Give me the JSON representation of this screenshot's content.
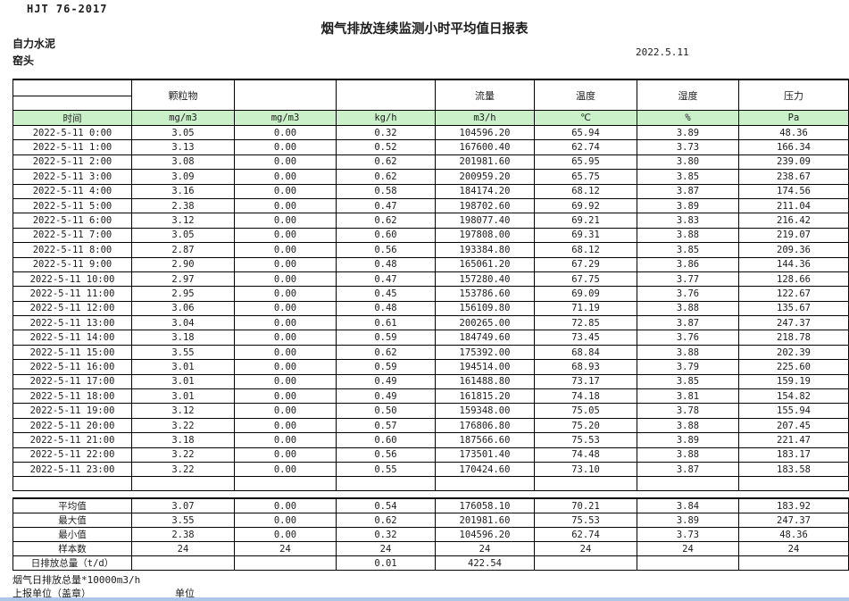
{
  "page": {
    "doc_code": "HJT  76-2017",
    "title": "烟气排放连续监测小时平均值日报表",
    "company": "自力水泥",
    "location": "窑头",
    "date": "2022.5.11"
  },
  "table": {
    "group_headers": [
      "",
      "颗粒物",
      "",
      "",
      "流量",
      "温度",
      "湿度",
      "压力"
    ],
    "unit_row": [
      "时间",
      "mg/m3",
      "mg/m3",
      "kg/h",
      "m3/h",
      "℃",
      "%",
      "Pa"
    ],
    "rows": [
      [
        "2022-5-11 0:00",
        "3.05",
        "0.00",
        "0.32",
        "104596.20",
        "65.94",
        "3.89",
        "48.36"
      ],
      [
        "2022-5-11 1:00",
        "3.13",
        "0.00",
        "0.52",
        "167600.40",
        "62.74",
        "3.73",
        "166.34"
      ],
      [
        "2022-5-11 2:00",
        "3.08",
        "0.00",
        "0.62",
        "201981.60",
        "65.95",
        "3.80",
        "239.09"
      ],
      [
        "2022-5-11 3:00",
        "3.09",
        "0.00",
        "0.62",
        "200959.20",
        "65.75",
        "3.85",
        "238.67"
      ],
      [
        "2022-5-11 4:00",
        "3.16",
        "0.00",
        "0.58",
        "184174.20",
        "68.12",
        "3.87",
        "174.56"
      ],
      [
        "2022-5-11 5:00",
        "2.38",
        "0.00",
        "0.47",
        "198702.60",
        "69.92",
        "3.89",
        "211.04"
      ],
      [
        "2022-5-11 6:00",
        "3.12",
        "0.00",
        "0.62",
        "198077.40",
        "69.21",
        "3.83",
        "216.42"
      ],
      [
        "2022-5-11 7:00",
        "3.05",
        "0.00",
        "0.60",
        "197808.00",
        "69.31",
        "3.88",
        "219.07"
      ],
      [
        "2022-5-11 8:00",
        "2.87",
        "0.00",
        "0.56",
        "193384.80",
        "68.12",
        "3.85",
        "209.36"
      ],
      [
        "2022-5-11 9:00",
        "2.90",
        "0.00",
        "0.48",
        "165061.20",
        "67.29",
        "3.86",
        "144.36"
      ],
      [
        "2022-5-11 10:00",
        "2.97",
        "0.00",
        "0.47",
        "157280.40",
        "67.75",
        "3.77",
        "128.66"
      ],
      [
        "2022-5-11 11:00",
        "2.95",
        "0.00",
        "0.45",
        "153786.60",
        "69.09",
        "3.76",
        "122.67"
      ],
      [
        "2022-5-11 12:00",
        "3.06",
        "0.00",
        "0.48",
        "156109.80",
        "71.19",
        "3.88",
        "135.67"
      ],
      [
        "2022-5-11 13:00",
        "3.04",
        "0.00",
        "0.61",
        "200265.00",
        "72.85",
        "3.87",
        "247.37"
      ],
      [
        "2022-5-11 14:00",
        "3.18",
        "0.00",
        "0.59",
        "184749.60",
        "73.45",
        "3.76",
        "218.78"
      ],
      [
        "2022-5-11 15:00",
        "3.55",
        "0.00",
        "0.62",
        "175392.00",
        "68.84",
        "3.88",
        "202.39"
      ],
      [
        "2022-5-11 16:00",
        "3.01",
        "0.00",
        "0.59",
        "194514.00",
        "68.93",
        "3.79",
        "225.60"
      ],
      [
        "2022-5-11 17:00",
        "3.01",
        "0.00",
        "0.49",
        "161488.80",
        "73.17",
        "3.85",
        "159.19"
      ],
      [
        "2022-5-11 18:00",
        "3.01",
        "0.00",
        "0.49",
        "161815.20",
        "74.18",
        "3.81",
        "154.82"
      ],
      [
        "2022-5-11 19:00",
        "3.12",
        "0.00",
        "0.50",
        "159348.00",
        "75.05",
        "3.78",
        "155.94"
      ],
      [
        "2022-5-11 20:00",
        "3.22",
        "0.00",
        "0.57",
        "176806.80",
        "75.20",
        "3.88",
        "207.45"
      ],
      [
        "2022-5-11 21:00",
        "3.18",
        "0.00",
        "0.60",
        "187566.60",
        "75.53",
        "3.89",
        "221.47"
      ],
      [
        "2022-5-11 22:00",
        "3.22",
        "0.00",
        "0.56",
        "173501.40",
        "74.48",
        "3.88",
        "183.17"
      ],
      [
        "2022-5-11 23:00",
        "3.22",
        "0.00",
        "0.55",
        "170424.60",
        "73.10",
        "3.87",
        "183.58"
      ]
    ],
    "summary": [
      [
        "平均值",
        "3.07",
        "0.00",
        "0.54",
        "176058.10",
        "70.21",
        "3.84",
        "183.92"
      ],
      [
        "最大值",
        "3.55",
        "0.00",
        "0.62",
        "201981.60",
        "75.53",
        "3.89",
        "247.37"
      ],
      [
        "最小值",
        "2.38",
        "0.00",
        "0.32",
        "104596.20",
        "62.74",
        "3.73",
        "48.36"
      ],
      [
        "样本数",
        "24",
        "24",
        "24",
        "24",
        "24",
        "24",
        "24"
      ],
      [
        "日排放总量（t/d）",
        "",
        "",
        "0.01",
        "422.54",
        "",
        "",
        ""
      ]
    ]
  },
  "footer": {
    "note": "烟气日排放总量*10000m3/h",
    "report_unit_label": "上报单位（盖章）",
    "unit_label": "单位"
  },
  "colors": {
    "header_green": "#c9f0c9",
    "bottom_bar": "#aec6e8"
  }
}
